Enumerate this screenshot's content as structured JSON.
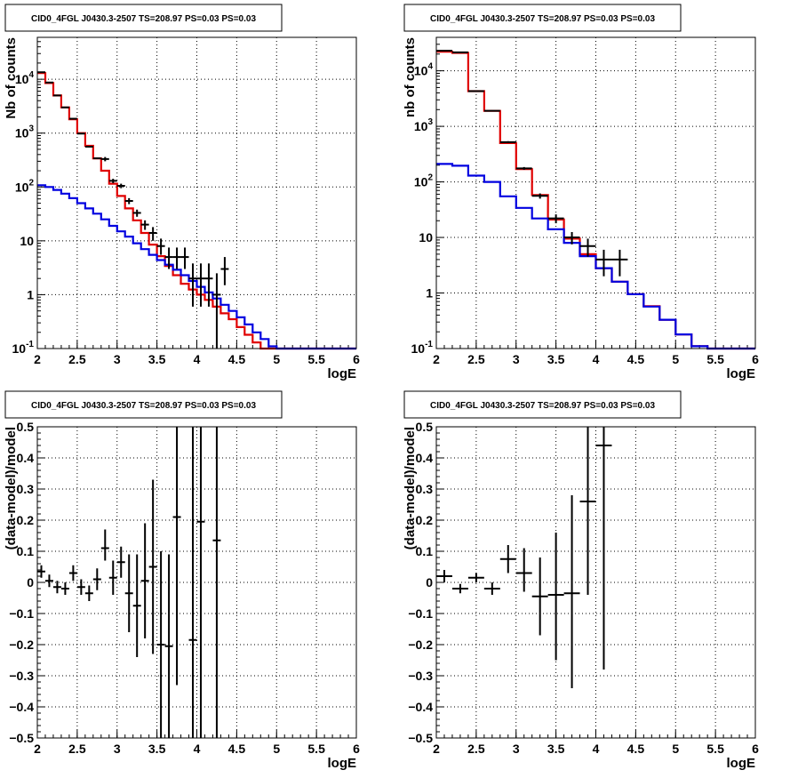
{
  "chart_data": [
    {
      "type": "line",
      "title": "CID0_4FGL J0430.3-2507 TS=208.97 PS=0.03 PS=0.03",
      "xlabel": "logE",
      "ylabel": "Nb of counts",
      "xlim": [
        2,
        6
      ],
      "ylim": [
        0.1,
        60000
      ],
      "yscale": "log",
      "grid": true,
      "x_ticks": [
        "2",
        "2.5",
        "3",
        "3.5",
        "4",
        "4.5",
        "5",
        "5.5",
        "6"
      ],
      "y_ticks": [
        "10^-1",
        "1",
        "10",
        "10^2",
        "10^3",
        "10^4"
      ],
      "bin_width": 0.1,
      "bin_low_edges": [
        2.0,
        2.1,
        2.2,
        2.3,
        2.4,
        2.5,
        2.6,
        2.7,
        2.8,
        2.9,
        3.0,
        3.1,
        3.2,
        3.3,
        3.4,
        3.5,
        3.6,
        3.7,
        3.8,
        3.9,
        4.0,
        4.1,
        4.2,
        4.3,
        4.4,
        4.5,
        4.6,
        4.7,
        4.8,
        4.9,
        5.0,
        5.1,
        5.2,
        5.3,
        5.4,
        5.5,
        5.6,
        5.7,
        5.8,
        5.9
      ],
      "series": [
        {
          "color": "#e00000",
          "values": [
            13000,
            8500,
            5000,
            3000,
            1800,
            1000,
            580,
            340,
            200,
            115,
            68,
            40,
            24,
            14,
            8.5,
            5.2,
            3.4,
            2.3,
            1.6,
            1.25,
            1.0,
            0.8,
            0.6,
            0.45,
            0.35,
            0.25,
            0.18,
            0.13,
            0.1,
            0.1,
            0.1,
            0.1,
            0.1,
            0.1,
            0.1,
            0.1,
            0.1,
            0.1,
            0.1,
            0.1
          ]
        },
        {
          "color": "#0000e0",
          "values": [
            108,
            100,
            88,
            75,
            62,
            50,
            40,
            32,
            25,
            19,
            15,
            12,
            9,
            7,
            5.5,
            4.4,
            3.6,
            2.9,
            2.3,
            1.8,
            1.4,
            1.1,
            0.85,
            0.65,
            0.5,
            0.38,
            0.28,
            0.2,
            0.15,
            0.11,
            0.09,
            0.1,
            0.1,
            0.1,
            0.1,
            0.1,
            0.1,
            0.1,
            0.1,
            0.1
          ]
        }
      ],
      "points": {
        "x": [
          2.05,
          2.15,
          2.25,
          2.35,
          2.45,
          2.55,
          2.65,
          2.75,
          2.85,
          2.95,
          3.05,
          3.15,
          3.25,
          3.35,
          3.45,
          3.55,
          3.65,
          3.75,
          3.85,
          3.95,
          4.05,
          4.15,
          4.25,
          4.35
        ],
        "y": [
          13500,
          8700,
          5000,
          3000,
          1850,
          980,
          560,
          340,
          330,
          130,
          105,
          55,
          33,
          20,
          14,
          8,
          5,
          5,
          5,
          2,
          2,
          2,
          1,
          3
        ],
        "y_low": [
          13300,
          8500,
          4900,
          2950,
          1800,
          960,
          540,
          330,
          300,
          118,
          95,
          48,
          28,
          16,
          10,
          5.5,
          3,
          3,
          3,
          0.6,
          0.6,
          0.6,
          0.05,
          1.5
        ],
        "y_high": [
          13700,
          8900,
          5100,
          3050,
          1900,
          1000,
          580,
          350,
          360,
          142,
          115,
          62,
          38,
          24,
          18,
          11,
          7.5,
          7.5,
          7.5,
          3.8,
          3.8,
          3.8,
          2.5,
          5
        ]
      }
    },
    {
      "type": "line",
      "title": "CID0_4FGL J0430.3-2507 TS=208.97 PS=0.03 PS=0.03",
      "xlabel": "logE",
      "ylabel": "nb of counts",
      "xlim": [
        2,
        6
      ],
      "ylim": [
        0.1,
        40000
      ],
      "yscale": "log",
      "grid": true,
      "x_ticks": [
        "2",
        "2.5",
        "3",
        "3.5",
        "4",
        "4.5",
        "5",
        "5.5",
        "6"
      ],
      "y_ticks": [
        "10^-1",
        "1",
        "10",
        "10^2",
        "10^3",
        "10^4"
      ],
      "bin_width": 0.2,
      "bin_low_edges": [
        2.0,
        2.2,
        2.4,
        2.6,
        2.8,
        3.0,
        3.2,
        3.4,
        3.6,
        3.8,
        4.0,
        4.2,
        4.4,
        4.6,
        4.8,
        5.0,
        5.2,
        5.4,
        5.6,
        5.8
      ],
      "series": [
        {
          "color": "#e00000",
          "values": [
            22000,
            21000,
            4300,
            1900,
            500,
            170,
            58,
            21,
            9.5,
            5,
            2.8,
            1.6,
            0.95,
            0.58,
            0.33,
            0.18,
            0.11,
            0.1,
            0.1,
            0.1
          ]
        },
        {
          "color": "#0000e0",
          "values": [
            210,
            195,
            130,
            100,
            55,
            34,
            22,
            14,
            8,
            4.6,
            2.8,
            1.6,
            0.95,
            0.57,
            0.33,
            0.18,
            0.11,
            0.1,
            0.1,
            0.1
          ]
        }
      ],
      "points": {
        "x": [
          2.1,
          2.3,
          2.5,
          2.7,
          2.9,
          3.1,
          3.3,
          3.5,
          3.7,
          3.9,
          4.1,
          4.3
        ],
        "y": [
          23000,
          21500,
          4300,
          1900,
          520,
          175,
          56,
          22,
          10,
          7,
          4,
          4
        ],
        "y_low": [
          22700,
          21200,
          4200,
          1850,
          500,
          165,
          50,
          18,
          7.5,
          4.5,
          2,
          2
        ],
        "y_high": [
          23300,
          21800,
          4400,
          1950,
          540,
          185,
          62,
          26,
          12.5,
          9.5,
          6,
          6
        ]
      }
    },
    {
      "type": "scatter",
      "title": "CID0_4FGL J0430.3-2507 TS=208.97 PS=0.03 PS=0.03",
      "xlabel": "logE",
      "ylabel": "(data-model)/model",
      "xlim": [
        2,
        6
      ],
      "ylim": [
        -0.5,
        0.5
      ],
      "grid": true,
      "x_ticks": [
        "2",
        "2.5",
        "3",
        "3.5",
        "4",
        "4.5",
        "5",
        "5.5",
        "6"
      ],
      "y_ticks": [
        "-0.5",
        "-0.4",
        "-0.3",
        "-0.2",
        "-0.1",
        "0",
        "0.1",
        "0.2",
        "0.3",
        "0.4",
        "0.5"
      ],
      "bin_width": 0.1,
      "x": [
        2.05,
        2.15,
        2.25,
        2.35,
        2.45,
        2.55,
        2.65,
        2.75,
        2.85,
        2.95,
        3.05,
        3.15,
        3.25,
        3.35,
        3.45,
        3.55,
        3.65,
        3.75,
        3.95,
        4.05,
        4.25
      ],
      "y": [
        0.035,
        0.005,
        -0.015,
        -0.02,
        0.03,
        -0.015,
        -0.035,
        0.01,
        0.11,
        0.015,
        0.065,
        -0.035,
        -0.075,
        0.005,
        0.05,
        -0.2,
        -0.205,
        0.21,
        -0.185,
        0.195,
        0.135
      ],
      "y_low": [
        0.015,
        -0.015,
        -0.035,
        -0.04,
        0.005,
        -0.04,
        -0.06,
        -0.025,
        0.07,
        -0.04,
        0.015,
        -0.16,
        -0.24,
        -0.18,
        -0.23,
        -0.5,
        -0.5,
        -0.33,
        -0.5,
        -0.5,
        -0.5
      ],
      "y_high": [
        0.055,
        0.025,
        0.005,
        0.0,
        0.055,
        0.01,
        -0.01,
        0.045,
        0.17,
        0.07,
        0.115,
        0.09,
        0.09,
        0.19,
        0.33,
        0.1,
        0.09,
        0.5,
        0.5,
        0.5,
        0.5
      ]
    },
    {
      "type": "scatter",
      "title": "CID0_4FGL J0430.3-2507 TS=208.97 PS=0.03 PS=0.03",
      "xlabel": "logE",
      "ylabel": "(data-model)/model",
      "xlim": [
        2,
        6
      ],
      "ylim": [
        -0.5,
        0.5
      ],
      "grid": true,
      "x_ticks": [
        "2",
        "2.5",
        "3",
        "3.5",
        "4",
        "4.5",
        "5",
        "5.5",
        "6"
      ],
      "y_ticks": [
        "-0.5",
        "-0.4",
        "-0.3",
        "-0.2",
        "-0.1",
        "0",
        "0.1",
        "0.2",
        "0.3",
        "0.4",
        "0.5"
      ],
      "bin_width": 0.2,
      "x": [
        2.1,
        2.3,
        2.5,
        2.7,
        2.9,
        3.1,
        3.3,
        3.5,
        3.7,
        3.9,
        4.1
      ],
      "y": [
        0.02,
        -0.02,
        0.015,
        -0.02,
        0.075,
        0.03,
        -0.045,
        -0.04,
        -0.035,
        0.26,
        0.44
      ],
      "y_low": [
        0.0,
        -0.035,
        0.0,
        -0.04,
        0.03,
        -0.03,
        -0.17,
        -0.25,
        -0.34,
        -0.04,
        -0.28
      ],
      "y_high": [
        0.04,
        -0.005,
        0.03,
        0.0,
        0.12,
        0.11,
        0.08,
        0.16,
        0.28,
        0.5,
        0.5
      ]
    }
  ]
}
